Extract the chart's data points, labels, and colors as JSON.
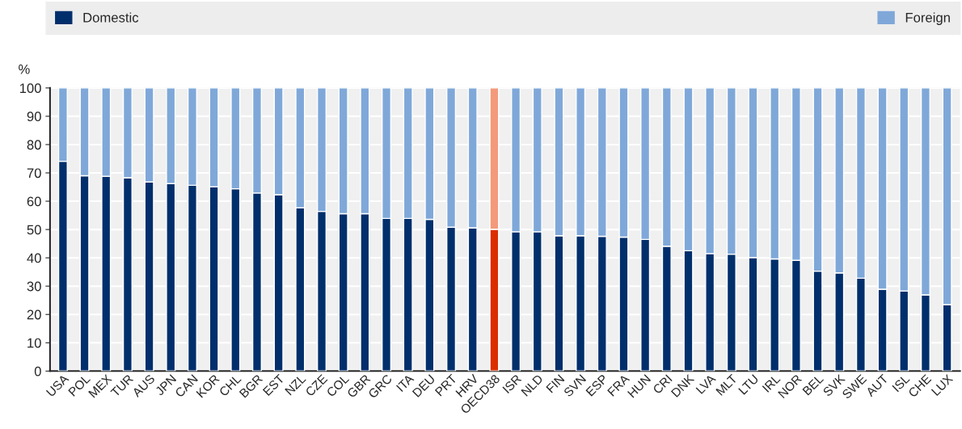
{
  "chart_data": {
    "type": "bar",
    "stacked": true,
    "ylabel": "%",
    "categories": [
      "USA",
      "POL",
      "MEX",
      "TUR",
      "AUS",
      "JPN",
      "CAN",
      "KOR",
      "CHL",
      "BGR",
      "EST",
      "NZL",
      "CZE",
      "COL",
      "GBR",
      "GRC",
      "ITA",
      "DEU",
      "PRT",
      "HRV",
      "OECD38",
      "ISR",
      "NLD",
      "FIN",
      "SVN",
      "ESP",
      "FRA",
      "HUN",
      "CRI",
      "DNK",
      "LVA",
      "MLT",
      "LTU",
      "IRL",
      "NOR",
      "BEL",
      "SVK",
      "SWE",
      "AUT",
      "ISL",
      "CHE",
      "LUX"
    ],
    "series": [
      {
        "name": "Domestic",
        "color": "#002f6c",
        "colors": [
          "#002f6c",
          "#002f6c",
          "#002f6c",
          "#002f6c",
          "#002f6c",
          "#002f6c",
          "#002f6c",
          "#002f6c",
          "#002f6c",
          "#002f6c",
          "#002f6c",
          "#002f6c",
          "#002f6c",
          "#002f6c",
          "#002f6c",
          "#002f6c",
          "#002f6c",
          "#002f6c",
          "#002f6c",
          "#002f6c",
          "#dc2d00",
          "#002f6c",
          "#002f6c",
          "#002f6c",
          "#002f6c",
          "#002f6c",
          "#002f6c",
          "#002f6c",
          "#002f6c",
          "#002f6c",
          "#002f6c",
          "#002f6c",
          "#002f6c",
          "#002f6c",
          "#002f6c",
          "#002f6c",
          "#002f6c",
          "#002f6c",
          "#002f6c",
          "#002f6c",
          "#002f6c",
          "#002f6c"
        ],
        "values": [
          74.1,
          69.0,
          68.8,
          68.3,
          66.8,
          66.2,
          65.6,
          65.1,
          64.4,
          62.9,
          62.3,
          57.7,
          56.4,
          55.6,
          55.6,
          53.9,
          53.9,
          53.6,
          50.8,
          50.6,
          50.1,
          49.2,
          49.2,
          47.8,
          47.8,
          47.6,
          47.3,
          46.5,
          44.1,
          42.5,
          41.5,
          41.3,
          40.1,
          39.6,
          39.1,
          35.3,
          34.7,
          32.8,
          28.9,
          28.3,
          26.9,
          23.5
        ]
      },
      {
        "name": "Foreign",
        "color": "#7fa8d9",
        "colors": [
          "#7fa8d9",
          "#7fa8d9",
          "#7fa8d9",
          "#7fa8d9",
          "#7fa8d9",
          "#7fa8d9",
          "#7fa8d9",
          "#7fa8d9",
          "#7fa8d9",
          "#7fa8d9",
          "#7fa8d9",
          "#7fa8d9",
          "#7fa8d9",
          "#7fa8d9",
          "#7fa8d9",
          "#7fa8d9",
          "#7fa8d9",
          "#7fa8d9",
          "#7fa8d9",
          "#7fa8d9",
          "#f4997b",
          "#7fa8d9",
          "#7fa8d9",
          "#7fa8d9",
          "#7fa8d9",
          "#7fa8d9",
          "#7fa8d9",
          "#7fa8d9",
          "#7fa8d9",
          "#7fa8d9",
          "#7fa8d9",
          "#7fa8d9",
          "#7fa8d9",
          "#7fa8d9",
          "#7fa8d9",
          "#7fa8d9",
          "#7fa8d9",
          "#7fa8d9",
          "#7fa8d9",
          "#7fa8d9",
          "#7fa8d9",
          "#7fa8d9"
        ],
        "values": [
          25.9,
          31.0,
          31.2,
          31.7,
          33.2,
          33.8,
          34.4,
          34.9,
          35.6,
          37.1,
          37.7,
          42.3,
          43.6,
          44.4,
          44.4,
          46.1,
          46.1,
          46.4,
          49.2,
          49.4,
          49.9,
          50.8,
          50.8,
          52.2,
          52.2,
          52.4,
          52.7,
          53.5,
          55.9,
          57.5,
          58.5,
          58.7,
          59.9,
          60.4,
          60.9,
          64.7,
          65.3,
          67.2,
          71.1,
          71.7,
          73.1,
          76.5
        ]
      }
    ],
    "ylim": [
      0,
      100
    ],
    "yticks": [
      0,
      10,
      20,
      30,
      40,
      50,
      60,
      70,
      80,
      90,
      100
    ],
    "grid": "y",
    "legend": "top"
  }
}
